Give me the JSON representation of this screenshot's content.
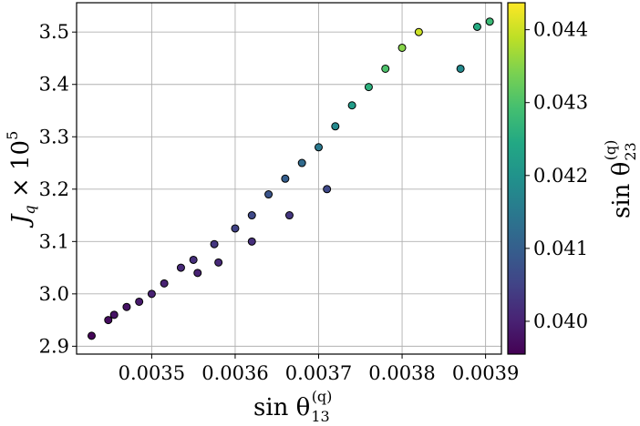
{
  "chart_data": {
    "type": "scatter",
    "title": "",
    "xlabel": {
      "main": "sin θ",
      "sub": "13",
      "sup": "(q)"
    },
    "ylabel": {
      "main": "J",
      "sub": "q",
      "mid": " × 10",
      "sup": "5"
    },
    "colorbar_label": {
      "main": "sin θ",
      "sub": "23",
      "sup": "(q)"
    },
    "xlim": [
      0.00341,
      0.003919
    ],
    "ylim": [
      2.885,
      3.556
    ],
    "x_ticks": [
      0.0035,
      0.0036,
      0.0037,
      0.0038,
      0.0039
    ],
    "x_tick_labels": [
      "0.0035",
      "0.0036",
      "0.0037",
      "0.0038",
      "0.0039"
    ],
    "y_ticks": [
      2.9,
      3.0,
      3.1,
      3.2,
      3.3,
      3.4,
      3.5
    ],
    "y_tick_labels": [
      "2.9",
      "3.0",
      "3.1",
      "3.2",
      "3.3",
      "3.4",
      "3.5"
    ],
    "colorbar_range": [
      0.03955,
      0.04437
    ],
    "colorbar_ticks": [
      0.04,
      0.041,
      0.042,
      0.043,
      0.044
    ],
    "colorbar_tick_labels": [
      "0.040",
      "0.041",
      "0.042",
      "0.043",
      "0.044"
    ],
    "colormap": "viridis",
    "grid": true,
    "marker_edge_color": "#000000",
    "points": [
      {
        "x": 0.003428,
        "y": 2.92,
        "c": 0.0396
      },
      {
        "x": 0.003448,
        "y": 2.95,
        "c": 0.0397
      },
      {
        "x": 0.003455,
        "y": 2.96,
        "c": 0.0398
      },
      {
        "x": 0.00347,
        "y": 2.975,
        "c": 0.0398
      },
      {
        "x": 0.003485,
        "y": 2.985,
        "c": 0.0399
      },
      {
        "x": 0.0035,
        "y": 3.0,
        "c": 0.04
      },
      {
        "x": 0.003515,
        "y": 3.02,
        "c": 0.04
      },
      {
        "x": 0.003535,
        "y": 3.05,
        "c": 0.0401
      },
      {
        "x": 0.00355,
        "y": 3.065,
        "c": 0.0402
      },
      {
        "x": 0.003555,
        "y": 3.04,
        "c": 0.04
      },
      {
        "x": 0.003575,
        "y": 3.095,
        "c": 0.0403
      },
      {
        "x": 0.00358,
        "y": 3.06,
        "c": 0.0401
      },
      {
        "x": 0.0036,
        "y": 3.125,
        "c": 0.0405
      },
      {
        "x": 0.00362,
        "y": 3.15,
        "c": 0.0406
      },
      {
        "x": 0.00362,
        "y": 3.1,
        "c": 0.0402
      },
      {
        "x": 0.00364,
        "y": 3.19,
        "c": 0.0408
      },
      {
        "x": 0.00366,
        "y": 3.22,
        "c": 0.041
      },
      {
        "x": 0.003665,
        "y": 3.15,
        "c": 0.0403
      },
      {
        "x": 0.00368,
        "y": 3.25,
        "c": 0.0412
      },
      {
        "x": 0.0037,
        "y": 3.28,
        "c": 0.0415
      },
      {
        "x": 0.00371,
        "y": 3.2,
        "c": 0.0406
      },
      {
        "x": 0.00372,
        "y": 3.32,
        "c": 0.0418
      },
      {
        "x": 0.00374,
        "y": 3.36,
        "c": 0.0422
      },
      {
        "x": 0.00376,
        "y": 3.395,
        "c": 0.0426
      },
      {
        "x": 0.00378,
        "y": 3.43,
        "c": 0.043
      },
      {
        "x": 0.0038,
        "y": 3.47,
        "c": 0.0435
      },
      {
        "x": 0.00382,
        "y": 3.5,
        "c": 0.044
      },
      {
        "x": 0.00389,
        "y": 3.51,
        "c": 0.0425
      },
      {
        "x": 0.003905,
        "y": 3.52,
        "c": 0.0428
      },
      {
        "x": 0.00387,
        "y": 3.43,
        "c": 0.0418
      }
    ]
  }
}
